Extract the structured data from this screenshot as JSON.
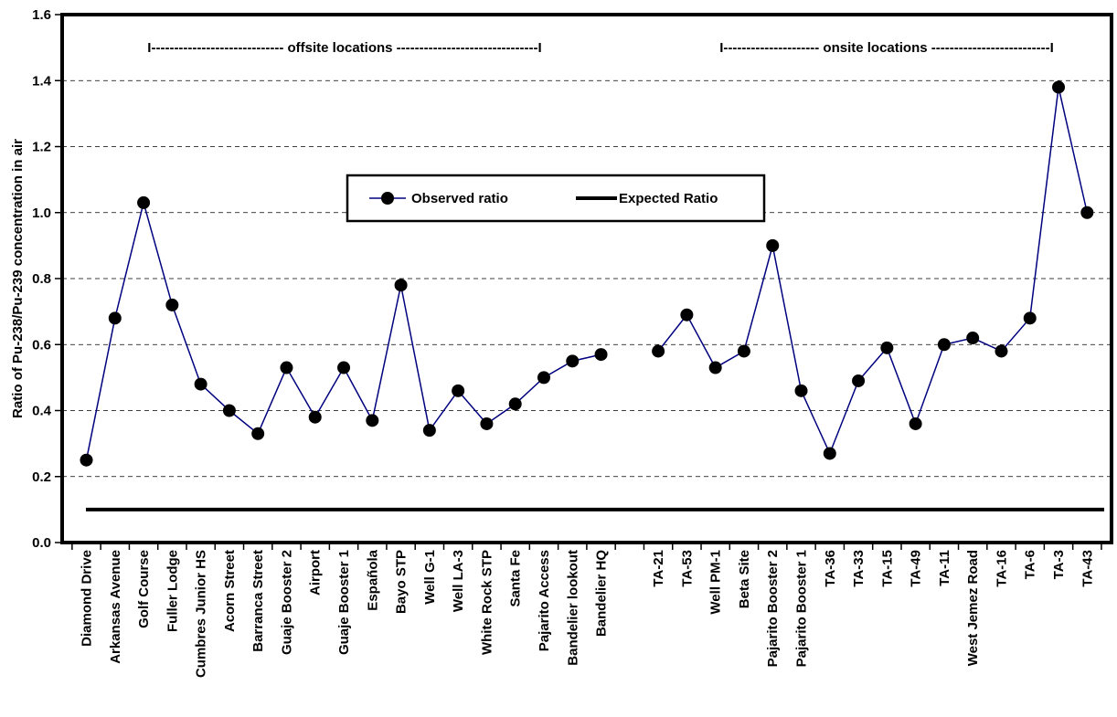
{
  "chart_data": {
    "type": "line",
    "ylabel": "Ratio of Pu-238/Pu-239 concentration in air",
    "xlabel": "",
    "title": "",
    "ylim": [
      0,
      1.6
    ],
    "yticks": [
      "0.0",
      "0.2",
      "0.4",
      "0.6",
      "0.8",
      "1.0",
      "1.2",
      "1.4",
      "1.6"
    ],
    "grid": "horizontal-dashed",
    "legend_position": "center",
    "colors": {
      "observed": "#00007f",
      "expected": "#000000",
      "marker": "#000000"
    },
    "groups": [
      {
        "label": "I----------------------------- offsite locations -------------------------------I"
      },
      {
        "label": "I--------------------- onsite locations --------------------------I"
      }
    ],
    "categories": [
      "Diamond Drive",
      "Arkansas Avenue",
      "Golf Course",
      "Fuller Lodge",
      "Cumbres Junior HS",
      "Acorn Street",
      "Barranca Street",
      "Guaje Booster 2",
      "Airport",
      "Guaje Booster 1",
      "Española",
      "Bayo STP",
      "Well G-1",
      "Well LA-3",
      "White Rock STP",
      "Santa Fe",
      "Pajarito Access",
      "Bandelier lookout",
      "Bandelier HQ",
      "",
      "TA-21",
      "TA-53",
      "Well PM-1",
      "Beta Site",
      "Pajarito Booster 2",
      "Pajarito Booster 1",
      "TA-36",
      "TA-33",
      "TA-15",
      "TA-49",
      "TA-11",
      "West Jemez Road",
      "TA-16",
      "TA-6",
      "TA-3",
      "TA-43"
    ],
    "series": [
      {
        "name": "Observed ratio",
        "values": [
          0.25,
          0.68,
          1.03,
          0.72,
          0.48,
          0.4,
          0.33,
          0.53,
          0.38,
          0.53,
          0.37,
          0.78,
          0.34,
          0.46,
          0.36,
          0.42,
          0.5,
          0.55,
          0.57,
          null,
          0.58,
          0.69,
          0.53,
          0.58,
          0.9,
          0.46,
          0.27,
          0.49,
          0.59,
          0.36,
          0.6,
          0.62,
          0.58,
          0.68,
          1.38,
          1.0
        ]
      },
      {
        "name": "Expected Ratio",
        "values": [
          0.1,
          0.1,
          0.1,
          0.1,
          0.1,
          0.1,
          0.1,
          0.1,
          0.1,
          0.1,
          0.1,
          0.1,
          0.1,
          0.1,
          0.1,
          0.1,
          0.1,
          0.1,
          0.1,
          0.1,
          0.1,
          0.1,
          0.1,
          0.1,
          0.1,
          0.1,
          0.1,
          0.1,
          0.1,
          0.1,
          0.1,
          0.1,
          0.1,
          0.1,
          0.1,
          0.1
        ]
      }
    ]
  }
}
